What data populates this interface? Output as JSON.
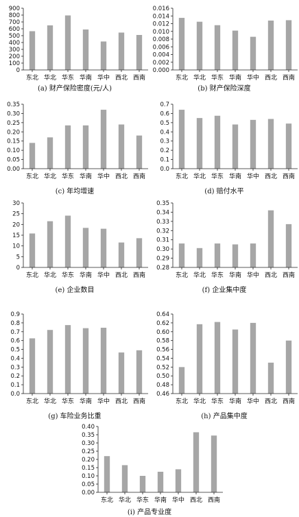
{
  "colors": {
    "bar": "#a6a6a6",
    "axis": "#222222"
  },
  "chart_data": [
    {
      "type": "bar",
      "title": "(a) 财产保险密度(元/人)",
      "categories": [
        "东北",
        "华北",
        "华东",
        "华南",
        "华中",
        "西北",
        "西南"
      ],
      "values": [
        565,
        650,
        795,
        590,
        415,
        545,
        510
      ],
      "ylim": [
        0,
        900
      ],
      "yticks": [
        "0",
        "100",
        "200",
        "300",
        "400",
        "500",
        "600",
        "700",
        "800",
        "900"
      ],
      "xlabel": "",
      "ylabel": "",
      "grid": false
    },
    {
      "type": "bar",
      "title": "(b) 财产保险深度",
      "categories": [
        "东北",
        "华北",
        "华东",
        "华南",
        "华中",
        "西北",
        "西南"
      ],
      "values": [
        0.0135,
        0.0125,
        0.0116,
        0.0102,
        0.0086,
        0.0128,
        0.0129
      ],
      "ylim": [
        0,
        0.016
      ],
      "yticks": [
        "0.000",
        "0.002",
        "0.004",
        "0.006",
        "0.008",
        "0.010",
        "0.012",
        "0.014",
        "0.016"
      ],
      "xlabel": "",
      "ylabel": "",
      "grid": false
    },
    {
      "type": "bar",
      "title": "(c) 年均增速",
      "categories": [
        "东北",
        "华北",
        "华东",
        "华南",
        "华中",
        "西北",
        "西南"
      ],
      "values": [
        0.14,
        0.17,
        0.235,
        0.235,
        0.32,
        0.24,
        0.18
      ],
      "ylim": [
        0,
        0.35
      ],
      "yticks": [
        "0.00",
        "0.05",
        "0.10",
        "0.15",
        "0.20",
        "0.25",
        "0.30",
        "0.35"
      ],
      "xlabel": "",
      "ylabel": "",
      "grid": false
    },
    {
      "type": "bar",
      "title": "(d) 赔付水平",
      "categories": [
        "东北",
        "华北",
        "华东",
        "华南",
        "华中",
        "西北",
        "西南"
      ],
      "values": [
        0.64,
        0.55,
        0.575,
        0.48,
        0.53,
        0.54,
        0.49
      ],
      "ylim": [
        0,
        0.7
      ],
      "yticks": [
        "0.0",
        "0.1",
        "0.2",
        "0.3",
        "0.4",
        "0.5",
        "0.6",
        "0.7"
      ],
      "xlabel": "",
      "ylabel": "",
      "grid": false
    },
    {
      "type": "bar",
      "title": "(e) 企业数目",
      "categories": [
        "东北",
        "华北",
        "华东",
        "华南",
        "华中",
        "西北",
        "西南"
      ],
      "values": [
        15.8,
        21.5,
        24.1,
        18.4,
        18.0,
        11.6,
        13.6
      ],
      "ylim": [
        0,
        30
      ],
      "yticks": [
        "0",
        "5",
        "10",
        "15",
        "20",
        "25",
        "30"
      ],
      "xlabel": "",
      "ylabel": "",
      "grid": false
    },
    {
      "type": "bar",
      "title": "(f) 企业集中度",
      "categories": [
        "东北",
        "华北",
        "华东",
        "华南",
        "华中",
        "西北",
        "西南"
      ],
      "values": [
        0.306,
        0.301,
        0.306,
        0.305,
        0.306,
        0.342,
        0.327
      ],
      "ylim": [
        0.28,
        0.35
      ],
      "yticks": [
        "0.28",
        "0.29",
        "0.30",
        "0.31",
        "0.32",
        "0.33",
        "0.34",
        "0.35"
      ],
      "xlabel": "",
      "ylabel": "",
      "grid": false
    },
    {
      "type": "bar",
      "title": "(g) 车险业务比重",
      "categories": [
        "东北",
        "华北",
        "华东",
        "华南",
        "华中",
        "西北",
        "西南"
      ],
      "values": [
        0.625,
        0.72,
        0.775,
        0.74,
        0.745,
        0.465,
        0.49
      ],
      "ylim": [
        0,
        0.9
      ],
      "yticks": [
        "0.0",
        "0.1",
        "0.2",
        "0.3",
        "0.4",
        "0.5",
        "0.6",
        "0.7",
        "0.8",
        "0.9"
      ],
      "xlabel": "",
      "ylabel": "",
      "grid": false
    },
    {
      "type": "bar",
      "title": "(h) 产品集中度",
      "categories": [
        "东北",
        "华北",
        "华东",
        "华南",
        "华中",
        "西北",
        "西南"
      ],
      "values": [
        0.52,
        0.617,
        0.622,
        0.605,
        0.62,
        0.53,
        0.58
      ],
      "ylim": [
        0.46,
        0.64
      ],
      "yticks": [
        "0.46",
        "0.48",
        "0.50",
        "0.52",
        "0.54",
        "0.56",
        "0.58",
        "0.60",
        "0.62",
        "0.64"
      ],
      "xlabel": "",
      "ylabel": "",
      "grid": false
    },
    {
      "type": "bar",
      "title": "(i) 产品专业度",
      "categories": [
        "东北",
        "华北",
        "华东",
        "华南",
        "华中",
        "西北",
        "西南"
      ],
      "values": [
        0.22,
        0.165,
        0.1,
        0.125,
        0.14,
        0.365,
        0.345
      ],
      "ylim": [
        0,
        0.4
      ],
      "yticks": [
        "0.00",
        "0.05",
        "0.10",
        "0.15",
        "0.20",
        "0.25",
        "0.30",
        "0.35",
        "0.40"
      ],
      "xlabel": "",
      "ylabel": "",
      "grid": false
    }
  ]
}
